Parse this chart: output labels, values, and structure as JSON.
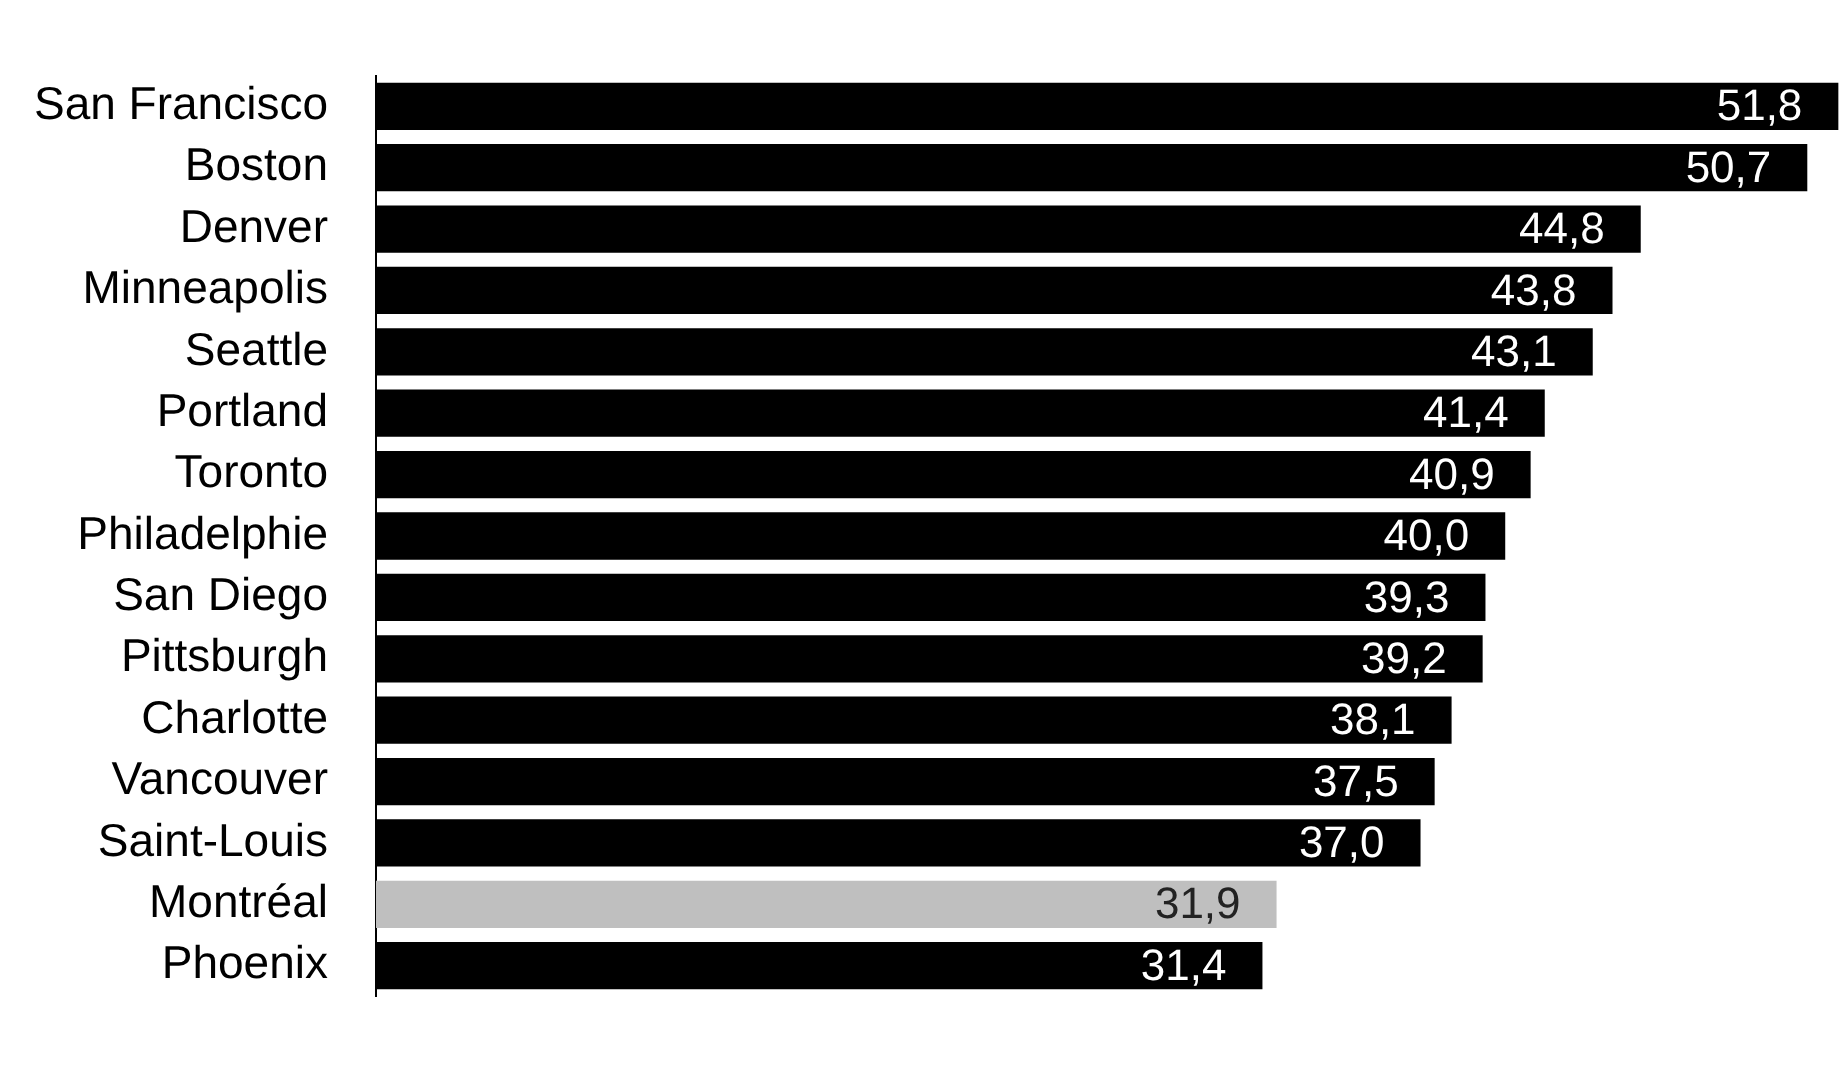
{
  "chart_data": {
    "type": "bar",
    "orientation": "horizontal",
    "categories": [
      "San Francisco",
      "Boston",
      "Denver",
      "Minneapolis",
      "Seattle",
      "Portland",
      "Toronto",
      "Philadelphie",
      "San Diego",
      "Pittsburgh",
      "Charlotte",
      "Vancouver",
      "Saint-Louis",
      "Montréal",
      "Phoenix"
    ],
    "values": [
      51.8,
      50.7,
      44.8,
      43.8,
      43.1,
      41.4,
      40.9,
      40.0,
      39.3,
      39.2,
      38.1,
      37.5,
      37.0,
      31.9,
      31.4
    ],
    "colors": [
      "#000000",
      "#000000",
      "#000000",
      "#000000",
      "#000000",
      "#000000",
      "#000000",
      "#000000",
      "#000000",
      "#000000",
      "#000000",
      "#000000",
      "#000000",
      "#bfbfbf",
      "#000000"
    ],
    "value_labels": [
      "51,8",
      "50,7",
      "44,8",
      "43,8",
      "43,1",
      "41,4",
      "40,9",
      "40,0",
      "39,3",
      "39,2",
      "38,1",
      "37,5",
      "37,0",
      "31,9",
      "31,4"
    ],
    "xlim": [
      0,
      52
    ],
    "tick_labels": "y"
  }
}
